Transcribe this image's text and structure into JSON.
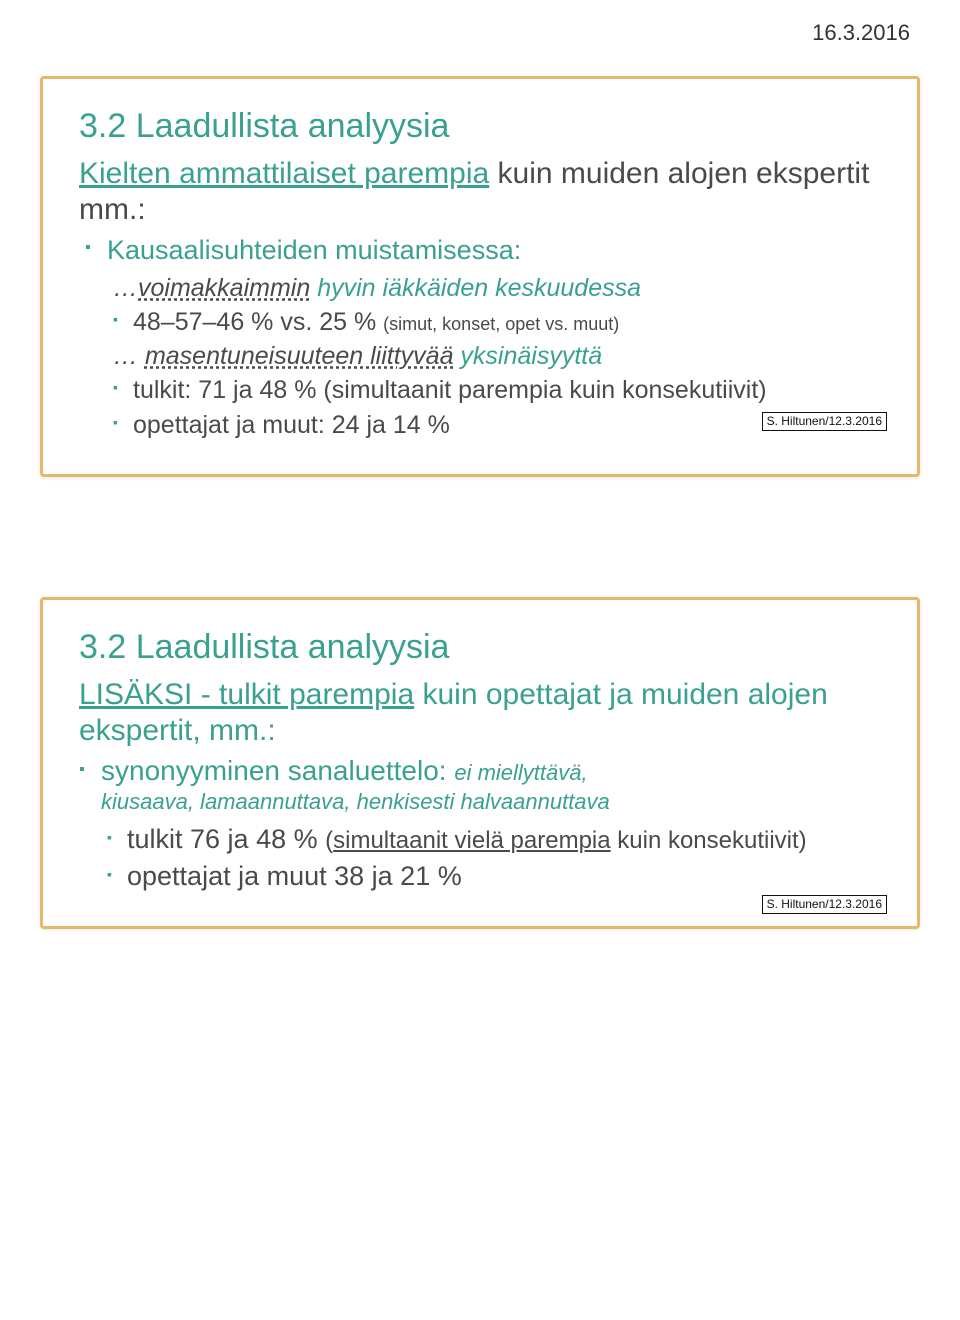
{
  "page_date": "16.3.2016",
  "attribution": "S. Hiltunen/12.3.2016",
  "colors": {
    "teal": "#3aa090",
    "border": "#e6b86a",
    "text": "#4a4a4a",
    "black": "#111111",
    "bg": "#ffffff"
  },
  "slide1": {
    "title": "3.2 Laadullista analyysia",
    "lead_ul": "Kielten ammattilaiset parempia",
    "lead_rest": " kuin muiden alojen ekspertit mm.:",
    "bullet_kausal": "Kausaalisuhteiden muistamisessa:",
    "italic_voim_pre": "…",
    "italic_voim_dotted": "voimakkaimmin",
    "italic_voim_tail": " hyvin iäkkäiden keskuudessa",
    "sub_pct_main": "48–57–46 % vs. 25 % ",
    "sub_pct_note": "(simut, konset, opet vs. muut)",
    "italic_masen_pre": "… ",
    "italic_masen_dotted": "masentuneisuuteen liittyvää",
    "italic_masen_tail": " yksinäisyyttä",
    "sub_tulkit": "tulkit: 71 ja 48 % (simultaanit parempia kuin konsekutiivit)",
    "sub_opet": "opettajat ja muut: 24 ja 14 %"
  },
  "slide2": {
    "title": "3.2 Laadullista analyysia",
    "lead_ul": "LISÄKSI - tulkit parempia",
    "lead_rest": " kuin opettajat ja muiden alojen ekspertit, mm.:",
    "syn_main": "synonyyminen sanaluettelo: ",
    "syn_tail": "ei miellyttävä,",
    "syn_sub": "kiusaava, lamaannuttava, henkisesti halvaannuttava",
    "tulkit_a": "tulkit 76 ja 48 % ",
    "tulkit_b": "(",
    "tulkit_c": "simultaanit vielä parempia",
    "tulkit_d": " kuin konsekutiivit)",
    "opet": "opettajat ja muut 38 ja 21 %"
  }
}
